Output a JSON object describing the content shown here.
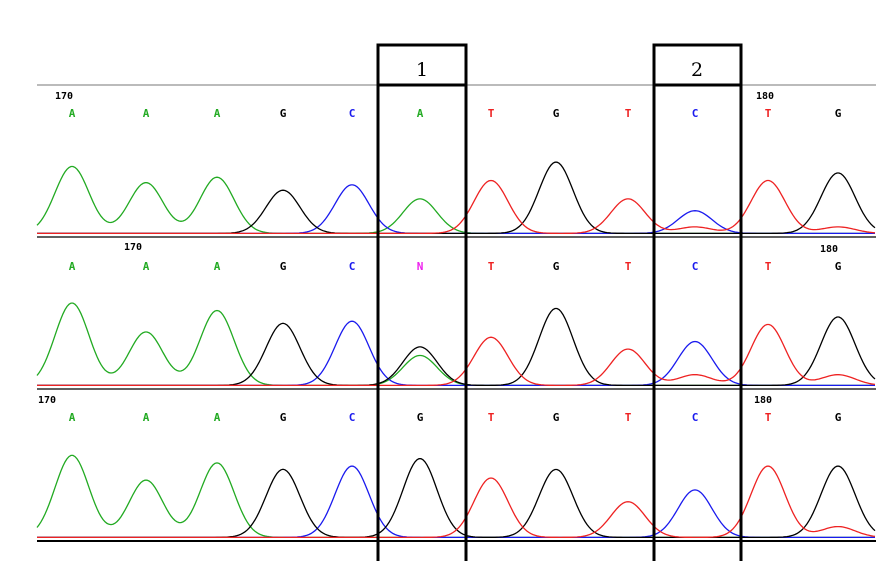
{
  "colors": {
    "A": "#22aa22",
    "C": "#1a1aee",
    "G": "#000000",
    "T": "#ee2222",
    "N": "#ee22ee"
  },
  "boxes": [
    {
      "label": "1"
    },
    {
      "label": "2"
    }
  ],
  "tracks": [
    {
      "position_labels": [
        "170",
        "180"
      ],
      "bases": [
        "A",
        "A",
        "A",
        "G",
        "C",
        "A",
        "T",
        "G",
        "T",
        "C",
        "T",
        "G"
      ]
    },
    {
      "position_labels": [
        "170",
        "180"
      ],
      "bases": [
        "A",
        "A",
        "A",
        "G",
        "C",
        "N",
        "T",
        "G",
        "T",
        "C",
        "T",
        "G"
      ]
    },
    {
      "position_labels": [
        "170",
        "180"
      ],
      "bases": [
        "A",
        "A",
        "A",
        "G",
        "C",
        "G",
        "T",
        "G",
        "T",
        "C",
        "T",
        "G"
      ]
    }
  ]
}
